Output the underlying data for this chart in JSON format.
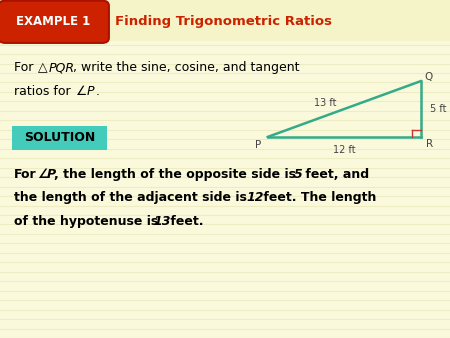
{
  "bg_color": "#faf9dc",
  "header_bg": "#f5f4c8",
  "stripe_color": "#e8e7b8",
  "example_box_color": "#cc2200",
  "example_box_text": "EXAMPLE 1",
  "example_text_color": "#ffffff",
  "title_text": "Finding Trigonometric Ratios",
  "title_color": "#cc2200",
  "solution_box_color": "#44ccbb",
  "solution_text": "SOLUTION",
  "triangle_color": "#33aa88",
  "right_angle_color": "#cc3333",
  "label_color": "#444444",
  "P": [
    0.595,
    0.595
  ],
  "Q": [
    0.935,
    0.76
  ],
  "R": [
    0.935,
    0.595
  ],
  "label_PQ": "13 ft",
  "label_QR": "5 ft",
  "label_PR": "12 ft"
}
